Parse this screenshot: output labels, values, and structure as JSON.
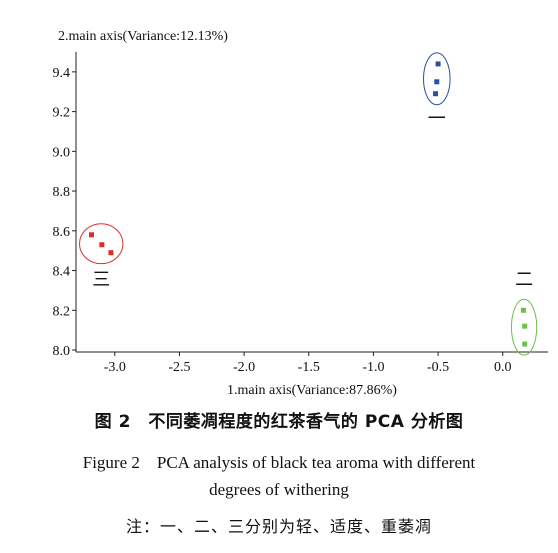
{
  "chart_data": {
    "type": "scatter",
    "ylabel": "2.main axis(Variance:12.13%)",
    "xlabel": "1.main axis(Variance:87.86%)",
    "xlim": [
      -3.3,
      0.35
    ],
    "ylim": [
      7.99,
      9.5
    ],
    "x_ticks": [
      -3.0,
      -2.5,
      -2.0,
      -1.5,
      -1.0,
      -0.5,
      0.0
    ],
    "x_tick_labels": [
      "-3.0",
      "-2.5",
      "-2.0",
      "-1.5",
      "-1.0",
      "-0.5",
      "0.0"
    ],
    "y_ticks": [
      8.0,
      8.2,
      8.4,
      8.6,
      8.8,
      9.0,
      9.2,
      9.4
    ],
    "y_tick_labels": [
      "8.0",
      "8.2",
      "8.4",
      "8.6",
      "8.8",
      "9.0",
      "9.2",
      "9.4"
    ],
    "groups": [
      {
        "label": "一",
        "color": "#2b4fa6",
        "points": [
          [
            -0.5,
            9.44
          ],
          [
            -0.51,
            9.35
          ],
          [
            -0.52,
            9.29
          ]
        ]
      },
      {
        "label": "二",
        "color": "#6cbf4b",
        "points": [
          [
            0.16,
            8.2
          ],
          [
            0.17,
            8.12
          ],
          [
            0.17,
            8.03
          ]
        ]
      },
      {
        "label": "三",
        "color": "#e02b2b",
        "points": [
          [
            -3.18,
            8.58
          ],
          [
            -3.1,
            8.53
          ],
          [
            -3.03,
            8.49
          ]
        ]
      }
    ]
  },
  "captions": {
    "zh": "图 2　不同萎凋程度的红茶香气的 PCA 分析图",
    "en_line1": "Figure 2　PCA analysis of black tea aroma with different",
    "en_line2": "degrees of withering",
    "note": "注：一、二、三分别为轻、适度、重萎凋"
  }
}
